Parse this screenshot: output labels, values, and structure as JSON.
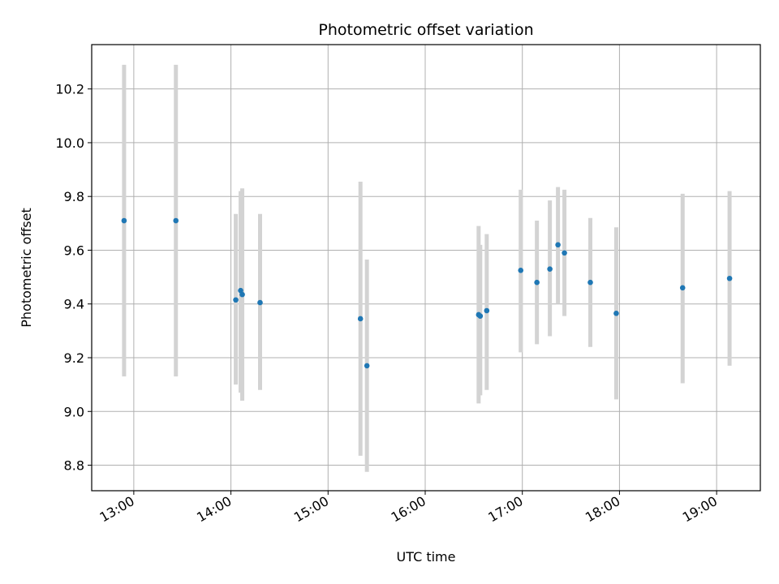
{
  "chart_data": {
    "type": "scatter",
    "title": "Photometric offset variation",
    "xlabel": "UTC time",
    "ylabel": "Photometric offset",
    "x_ticks": [
      "13:00",
      "14:00",
      "15:00",
      "16:00",
      "17:00",
      "18:00",
      "19:00"
    ],
    "y_ticks": [
      "8.8",
      "9.0",
      "9.2",
      "9.4",
      "9.6",
      "9.8",
      "10.0",
      "10.2"
    ],
    "xlim": [
      "12:34",
      "19:27"
    ],
    "ylim": [
      8.705,
      10.365
    ],
    "grid": true,
    "legend": "none",
    "colors": {
      "point": "#1f77b4",
      "errorbar": "#d3d3d3",
      "grid": "#b0b0b0",
      "axes": "#000000"
    },
    "points": [
      {
        "time": "12:54",
        "offset": 9.71,
        "err_low": 9.13,
        "err_high": 10.29
      },
      {
        "time": "13:26",
        "offset": 9.71,
        "err_low": 9.13,
        "err_high": 10.29
      },
      {
        "time": "14:03",
        "offset": 9.415,
        "err_low": 9.1,
        "err_high": 9.735
      },
      {
        "time": "14:06",
        "offset": 9.45,
        "err_low": 9.07,
        "err_high": 9.82
      },
      {
        "time": "14:07",
        "offset": 9.435,
        "err_low": 9.04,
        "err_high": 9.83
      },
      {
        "time": "14:18",
        "offset": 9.405,
        "err_low": 9.08,
        "err_high": 9.735
      },
      {
        "time": "15:20",
        "offset": 9.345,
        "err_low": 8.835,
        "err_high": 9.855
      },
      {
        "time": "15:24",
        "offset": 9.17,
        "err_low": 8.775,
        "err_high": 9.565
      },
      {
        "time": "16:33",
        "offset": 9.36,
        "err_low": 9.03,
        "err_high": 9.69
      },
      {
        "time": "16:34",
        "offset": 9.355,
        "err_low": 9.06,
        "err_high": 9.62
      },
      {
        "time": "16:38",
        "offset": 9.375,
        "err_low": 9.08,
        "err_high": 9.66
      },
      {
        "time": "16:59",
        "offset": 9.525,
        "err_low": 9.22,
        "err_high": 9.825
      },
      {
        "time": "17:09",
        "offset": 9.48,
        "err_low": 9.25,
        "err_high": 9.71
      },
      {
        "time": "17:17",
        "offset": 9.53,
        "err_low": 9.28,
        "err_high": 9.785
      },
      {
        "time": "17:22",
        "offset": 9.62,
        "err_low": 9.4,
        "err_high": 9.835
      },
      {
        "time": "17:26",
        "offset": 9.59,
        "err_low": 9.355,
        "err_high": 9.825
      },
      {
        "time": "17:42",
        "offset": 9.48,
        "err_low": 9.24,
        "err_high": 9.72
      },
      {
        "time": "17:58",
        "offset": 9.365,
        "err_low": 9.045,
        "err_high": 9.685
      },
      {
        "time": "18:39",
        "offset": 9.46,
        "err_low": 9.105,
        "err_high": 9.81
      },
      {
        "time": "19:08",
        "offset": 9.495,
        "err_low": 9.17,
        "err_high": 9.82
      }
    ]
  }
}
